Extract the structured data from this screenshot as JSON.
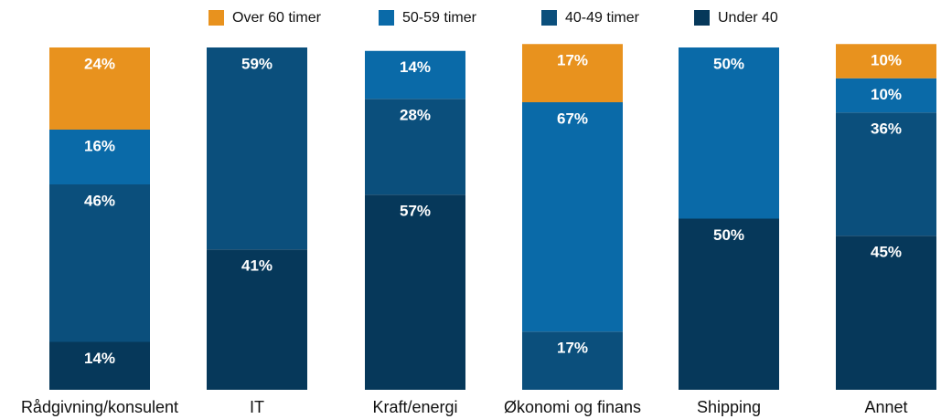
{
  "chart_data": {
    "type": "stacked_bar",
    "categories": [
      "Rådgivning/konsulent",
      "IT",
      "Kraft/energi",
      "Økonomi og finans",
      "Shipping",
      "Annet"
    ],
    "series": [
      {
        "name": "Over 60 timer",
        "color": "#e8921e",
        "values": [
          24,
          null,
          null,
          17,
          null,
          10
        ],
        "value_labels": [
          "24%",
          null,
          null,
          "17%",
          null,
          "10%"
        ]
      },
      {
        "name": "50-59 timer",
        "color": "#0a6aa8",
        "values": [
          16,
          null,
          14,
          67,
          50,
          10
        ],
        "value_labels": [
          "16%",
          null,
          "14%",
          "67%",
          "50%",
          "10%"
        ]
      },
      {
        "name": "40-49 timer",
        "color": "#0b4f7c",
        "values": [
          46,
          59,
          28,
          17,
          null,
          36
        ],
        "value_labels": [
          "46%",
          "59%",
          "28%",
          "17%",
          null,
          "36%"
        ]
      },
      {
        "name": "Under 40",
        "color": "#06385a",
        "values": [
          14,
          41,
          57,
          null,
          50,
          45
        ],
        "value_labels": [
          "14%",
          "41%",
          "57%",
          null,
          "50%",
          "45%"
        ]
      }
    ],
    "ylim": [
      0,
      100
    ]
  }
}
